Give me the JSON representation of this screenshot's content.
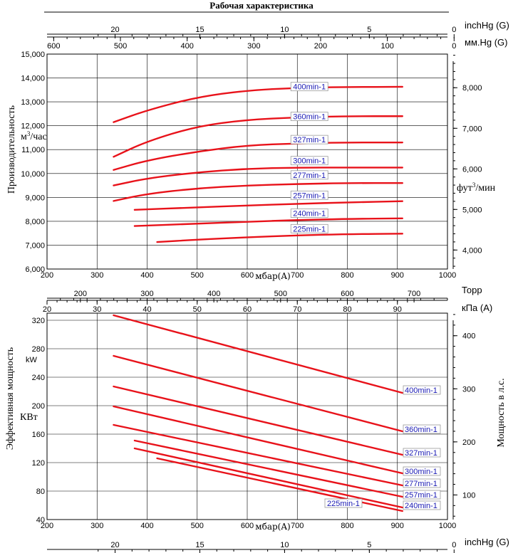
{
  "title": "Рабочая характеристика",
  "top": {
    "inchhg_ticks": [
      "20",
      "15",
      "10",
      "5",
      "0"
    ],
    "inchhg_label": "inchHg (G)",
    "mmhg_ticks": [
      "600",
      "500",
      "400",
      "300",
      "200",
      "100",
      "0"
    ],
    "mmhg_label": "мм.Hg (G)"
  },
  "middle": {
    "torr_ticks": [
      "200",
      "300",
      "400",
      "500",
      "600",
      "700"
    ],
    "torr_label": "Торр",
    "kpa_ticks": [
      "20",
      "30",
      "40",
      "50",
      "60",
      "70",
      "80",
      "90"
    ],
    "kpa_label": "кПа (A)"
  },
  "bottom": {
    "inchhg_ticks": [
      "20",
      "15",
      "10",
      "5",
      "0"
    ],
    "inchhg_label": "inchHg (G)"
  },
  "chart_data": [
    {
      "type": "line",
      "name": "capacity",
      "xlabel": "мбар(A)",
      "x_ticks": [
        "200",
        "300",
        "400",
        "500",
        "600",
        "700",
        "800",
        "900",
        "1000"
      ],
      "xlim": [
        200,
        1000
      ],
      "ylabel_main": "Производительность",
      "ylabel_unit": "м³/час",
      "y_ticks": [
        "6,000",
        "7,000",
        "8,000",
        "9,000",
        "10,000",
        "11,000",
        "12,000",
        "13,000",
        "14,000",
        "15,000"
      ],
      "ylim": [
        6000,
        15000
      ],
      "y2label": "фут³/мин",
      "y2_ticks": [
        "4,000",
        "5,000",
        "6,000",
        "7,000",
        "8,000"
      ],
      "series": [
        {
          "name": "400min-1",
          "label_at": [
            690,
            13550
          ],
          "x": [
            333,
            400,
            500,
            600,
            700,
            800,
            910
          ],
          "y": [
            12150,
            12650,
            13200,
            13480,
            13590,
            13620,
            13630
          ]
        },
        {
          "name": "360min-1",
          "label_at": [
            690,
            12300
          ],
          "x": [
            333,
            400,
            500,
            600,
            700,
            800,
            910
          ],
          "y": [
            10700,
            11350,
            11980,
            12250,
            12350,
            12400,
            12400
          ]
        },
        {
          "name": "327min-1",
          "label_at": [
            690,
            11330
          ],
          "x": [
            333,
            400,
            500,
            600,
            700,
            800,
            910
          ],
          "y": [
            10150,
            10550,
            10920,
            11180,
            11260,
            11300,
            11300
          ]
        },
        {
          "name": "300min-1",
          "label_at": [
            690,
            10450
          ],
          "x": [
            333,
            400,
            500,
            600,
            700,
            800,
            910
          ],
          "y": [
            9500,
            9800,
            10050,
            10200,
            10250,
            10250,
            10250
          ]
        },
        {
          "name": "277min-1",
          "label_at": [
            690,
            9850
          ],
          "x": [
            333,
            400,
            500,
            600,
            700,
            800,
            910
          ],
          "y": [
            8850,
            9150,
            9380,
            9500,
            9560,
            9600,
            9600
          ]
        },
        {
          "name": "257min-1",
          "label_at": [
            690,
            9000
          ],
          "x": [
            375,
            500,
            600,
            700,
            800,
            910
          ],
          "y": [
            8480,
            8580,
            8660,
            8730,
            8790,
            8840
          ]
        },
        {
          "name": "240min-1",
          "label_at": [
            690,
            8250
          ],
          "x": [
            375,
            500,
            600,
            700,
            800,
            910
          ],
          "y": [
            7800,
            7900,
            7980,
            8050,
            8100,
            8120
          ]
        },
        {
          "name": "225min-1",
          "label_at": [
            690,
            7600
          ],
          "x": [
            420,
            500,
            600,
            700,
            800,
            910
          ],
          "y": [
            7130,
            7230,
            7330,
            7410,
            7460,
            7480
          ]
        }
      ]
    },
    {
      "type": "line",
      "name": "power",
      "xlabel": "мбар(A)",
      "x_ticks": [
        "200",
        "300",
        "400",
        "500",
        "600",
        "700",
        "800",
        "900",
        "1000"
      ],
      "xlim": [
        200,
        1000
      ],
      "ylabel_main": "Эффективная мощность",
      "ylabel_unit": "КВт",
      "ylabel_unit2": "kW",
      "y_ticks": [
        "40",
        "80",
        "120",
        "160",
        "200",
        "240",
        "280",
        "320"
      ],
      "ylim": [
        40,
        330
      ],
      "y2label": "Мощность в л.с.",
      "y2_ticks": [
        "100",
        "200",
        "300",
        "400"
      ],
      "series": [
        {
          "name": "400min-1",
          "label_at": [
            945,
            219
          ],
          "x": [
            333,
            910
          ],
          "y": [
            327,
            218
          ]
        },
        {
          "name": "360min-1",
          "label_at": [
            945,
            164
          ],
          "x": [
            333,
            910
          ],
          "y": [
            270,
            164
          ]
        },
        {
          "name": "327min-1",
          "label_at": [
            945,
            131
          ],
          "x": [
            333,
            910
          ],
          "y": [
            227,
            131
          ]
        },
        {
          "name": "300min-1",
          "label_at": [
            945,
            105
          ],
          "x": [
            333,
            910
          ],
          "y": [
            199,
            105
          ]
        },
        {
          "name": "277min-1",
          "label_at": [
            945,
            88
          ],
          "x": [
            333,
            910
          ],
          "y": [
            173,
            88
          ]
        },
        {
          "name": "257min-1",
          "label_at": [
            945,
            72
          ],
          "x": [
            375,
            910
          ],
          "y": [
            151,
            72
          ]
        },
        {
          "name": "240min-1",
          "label_at": [
            945,
            57
          ],
          "x": [
            375,
            910
          ],
          "y": [
            140,
            57
          ]
        },
        {
          "name": "225min-1",
          "label_at": [
            758,
            60
          ],
          "x": [
            420,
            910
          ],
          "y": [
            126,
            52
          ]
        }
      ]
    }
  ]
}
